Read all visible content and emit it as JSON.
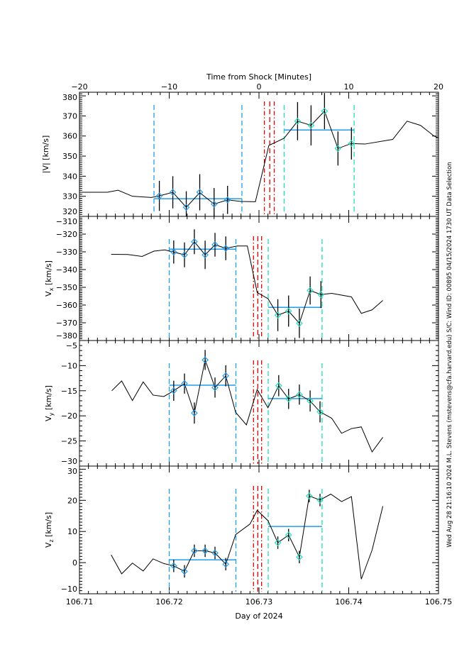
{
  "footer_text": "Wed Aug 28 21:16:10 2024  M.L. Stevens (mstevens@cfa.harvard.edu)  S/C: Wind ID: 00895 04/15/2024  1730 UT Data Selection",
  "colors": {
    "line": "#000000",
    "pre_marker": "#1e9ef0",
    "post_marker": "#1fe0c0",
    "average": "#1e9ef0",
    "boundary_pre": "#1e9ef0",
    "boundary_post": "#1fe0b8",
    "shock": "#e00000"
  },
  "chart_data": [
    {
      "type": "line",
      "panel": "speed",
      "top_xlabel": "Time from Shock [Minutes]",
      "xlim": [
        -20,
        20
      ],
      "xticks": [
        "-20",
        "-10",
        "0",
        "10",
        "20"
      ],
      "ylabel": "|V| [km/s]",
      "ylim": [
        320,
        381.8
      ],
      "yticks": [
        "320",
        "330",
        "340",
        "350",
        "360",
        "370",
        "380"
      ],
      "x": [
        -20,
        -16.9,
        -15.7,
        -14.1,
        -12,
        -11.1,
        -9.6,
        -8.1,
        -6.6,
        -5,
        -3.5,
        -2,
        -0.4,
        1.1,
        2.8,
        4.3,
        5.8,
        7.3,
        8.8,
        10.3,
        11.8,
        14.9,
        16.5,
        18,
        19.5,
        20
      ],
      "y": [
        332,
        332,
        333,
        330,
        329.4,
        330.2,
        332,
        324.5,
        331.8,
        326.1,
        328.2,
        327.4,
        327.3,
        355.3,
        358.9,
        367.4,
        365.3,
        372.4,
        353.8,
        356.3,
        356,
        358.3,
        367.4,
        365.3,
        360,
        359
      ],
      "points": [
        {
          "x": -11.1,
          "y": 330.2,
          "err": 7.5,
          "group": "pre"
        },
        {
          "x": -9.6,
          "y": 332,
          "err": 8,
          "group": "pre"
        },
        {
          "x": -8.1,
          "y": 324.5,
          "err": 8,
          "group": "pre"
        },
        {
          "x": -6.6,
          "y": 332,
          "err": 9,
          "group": "pre"
        },
        {
          "x": -5,
          "y": 326.1,
          "err": 8,
          "group": "pre"
        },
        {
          "x": -3.5,
          "y": 328.2,
          "err": 7,
          "group": "pre"
        },
        {
          "x": 4.3,
          "y": 367.4,
          "err": 9.5,
          "group": "post"
        },
        {
          "x": 5.8,
          "y": 365.3,
          "err": 10,
          "group": "post"
        },
        {
          "x": 7.3,
          "y": 372.4,
          "err": 9,
          "group": "post"
        },
        {
          "x": 8.8,
          "y": 353.8,
          "err": 8.5,
          "group": "post"
        },
        {
          "x": 10.3,
          "y": 356.3,
          "err": 8,
          "group": "post"
        }
      ],
      "averages": [
        {
          "x0": -11.7,
          "x1": -1.9,
          "y": 328.8,
          "group": "pre"
        },
        {
          "x0": 2.8,
          "x1": 10.6,
          "y": 363,
          "group": "post"
        }
      ],
      "vlines": [
        {
          "x": -11.7,
          "kind": "boundary_pre",
          "style": "dash"
        },
        {
          "x": -1.9,
          "kind": "boundary_pre",
          "style": "dash"
        },
        {
          "x": 0.6,
          "kind": "shock",
          "style": "dashdot"
        },
        {
          "x": 1.2,
          "kind": "shock",
          "style": "dash"
        },
        {
          "x": 1.7,
          "kind": "shock",
          "style": "dashdot"
        },
        {
          "x": 2.8,
          "kind": "boundary_post",
          "style": "dash"
        },
        {
          "x": 10.6,
          "kind": "boundary_post",
          "style": "dash"
        }
      ]
    },
    {
      "type": "line",
      "panel": "vx",
      "xlim": [
        106.71,
        106.75
      ],
      "ylabel": "Vx [km/s]",
      "ylabel_main": "V",
      "ylabel_sub": "x",
      "ylabel_unit": " [km/s]",
      "ylim": [
        -380,
        -310
      ],
      "yticks": [
        "-310",
        "-320",
        "-330",
        "-340",
        "-350",
        "-360",
        "-370",
        "-380"
      ],
      "x": [
        106.71353,
        106.71538,
        106.71698,
        106.7183,
        106.7195,
        106.7205,
        106.7217,
        106.7228,
        106.724,
        106.7251,
        106.7263,
        106.7276,
        106.7287,
        106.7298,
        106.731,
        106.7321,
        106.7333,
        106.7345,
        106.7357,
        106.7369,
        106.7381,
        106.7403,
        106.7414,
        106.7426,
        106.7438
      ],
      "y": [
        -331.4,
        -331.5,
        -332.6,
        -329.6,
        -328.9,
        -330.1,
        -331.7,
        -324.3,
        -331.7,
        -326,
        -328,
        -326.7,
        -326.7,
        -352.9,
        -356.4,
        -365.7,
        -363.4,
        -370.3,
        -351.8,
        -354.1,
        -353.4,
        -355.4,
        -364.7,
        -362.7,
        -357.4
      ],
      "points": [
        {
          "x": 106.7205,
          "y": -330.1,
          "err": 6.5,
          "group": "pre"
        },
        {
          "x": 106.7217,
          "y": -331.7,
          "err": 7,
          "group": "pre"
        },
        {
          "x": 106.7228,
          "y": -324.3,
          "err": 7,
          "group": "pre"
        },
        {
          "x": 106.724,
          "y": -331.7,
          "err": 8,
          "group": "pre"
        },
        {
          "x": 106.7251,
          "y": -326,
          "err": 6.7,
          "group": "pre"
        },
        {
          "x": 106.7263,
          "y": -328,
          "err": 6.7,
          "group": "pre"
        },
        {
          "x": 106.7321,
          "y": -365.7,
          "err": 9,
          "group": "post"
        },
        {
          "x": 106.7333,
          "y": -363.4,
          "err": 8.8,
          "group": "post"
        },
        {
          "x": 106.7345,
          "y": -370.3,
          "err": 8.3,
          "group": "post"
        },
        {
          "x": 106.7357,
          "y": -351.8,
          "err": 7.9,
          "group": "post"
        },
        {
          "x": 106.7369,
          "y": -354.1,
          "err": 7.6,
          "group": "post"
        }
      ],
      "averages": [
        {
          "x0": 106.72,
          "x1": 106.72743,
          "y": -328.5,
          "group": "pre"
        },
        {
          "x0": 106.73103,
          "x1": 106.73703,
          "y": -361.3,
          "group": "post"
        }
      ],
      "vlines": [
        {
          "x": 106.72,
          "kind": "boundary_pre",
          "style": "dash"
        },
        {
          "x": 106.72743,
          "kind": "boundary_pre",
          "style": "dash"
        },
        {
          "x": 106.72939,
          "kind": "shock",
          "style": "dashdot"
        },
        {
          "x": 106.72987,
          "kind": "shock",
          "style": "dash"
        },
        {
          "x": 106.73029,
          "kind": "shock",
          "style": "dashdot"
        },
        {
          "x": 106.73103,
          "kind": "boundary_post",
          "style": "dash"
        },
        {
          "x": 106.73703,
          "kind": "boundary_post",
          "style": "dash"
        }
      ]
    },
    {
      "type": "line",
      "panel": "vy",
      "xlim": [
        106.71,
        106.75
      ],
      "ylabel": "Vy [km/s]",
      "ylabel_main": "V",
      "ylabel_sub": "y",
      "ylabel_unit": " [km/s]",
      "ylim": [
        -30,
        -5
      ],
      "yticks": [
        "-5",
        "-10",
        "-15",
        "-20",
        "-25",
        "-30"
      ],
      "x": [
        106.7136,
        106.7147,
        106.7159,
        106.7171,
        106.7182,
        106.7194,
        106.7205,
        106.7217,
        106.7228,
        106.724,
        106.7251,
        106.7263,
        106.7274,
        106.7286,
        106.7298,
        106.731,
        106.7322,
        106.7333,
        106.7345,
        106.7357,
        106.7368,
        106.7381,
        106.7392,
        106.7403,
        106.7414,
        106.7426,
        106.7438
      ],
      "y": [
        -15,
        -13.05,
        -16.95,
        -13.24,
        -15.87,
        -16.15,
        -15,
        -13.57,
        -19.44,
        -8.87,
        -14.37,
        -12.02,
        -19.3,
        -21.8,
        -14.74,
        -18.4,
        -13.99,
        -16.62,
        -15.77,
        -17.04,
        -19.2,
        -20.47,
        -23.47,
        -22.54,
        -22.2,
        -27.18,
        -24.27
      ],
      "points": [
        {
          "x": 106.7205,
          "y": -15,
          "err": 2,
          "group": "pre"
        },
        {
          "x": 106.7217,
          "y": -13.57,
          "err": 2,
          "group": "pre"
        },
        {
          "x": 106.7228,
          "y": -19.44,
          "err": 2.1,
          "group": "pre"
        },
        {
          "x": 106.724,
          "y": -8.87,
          "err": 2,
          "group": "pre"
        },
        {
          "x": 106.7251,
          "y": -14.37,
          "err": 2,
          "group": "pre"
        },
        {
          "x": 106.7263,
          "y": -12.02,
          "err": 2.1,
          "group": "pre"
        },
        {
          "x": 106.7322,
          "y": -13.99,
          "err": 2.1,
          "group": "post"
        },
        {
          "x": 106.7333,
          "y": -16.62,
          "err": 2,
          "group": "post"
        },
        {
          "x": 106.7345,
          "y": -15.77,
          "err": 2,
          "group": "post"
        },
        {
          "x": 106.7357,
          "y": -17.04,
          "err": 2.1,
          "group": "post"
        },
        {
          "x": 106.7368,
          "y": -19.2,
          "err": 2.1,
          "group": "post"
        }
      ],
      "averages": [
        {
          "x0": 106.72,
          "x1": 106.72743,
          "y": -13.9,
          "group": "pre"
        },
        {
          "x0": 106.73103,
          "x1": 106.73703,
          "y": -16.57,
          "group": "post"
        }
      ],
      "vlines": [
        {
          "x": 106.72,
          "kind": "boundary_pre",
          "style": "dash"
        },
        {
          "x": 106.72743,
          "kind": "boundary_pre",
          "style": "dash"
        },
        {
          "x": 106.72939,
          "kind": "shock",
          "style": "dashdot"
        },
        {
          "x": 106.72987,
          "kind": "shock",
          "style": "dash"
        },
        {
          "x": 106.73029,
          "kind": "shock",
          "style": "dashdot"
        },
        {
          "x": 106.73103,
          "kind": "boundary_post",
          "style": "dash"
        },
        {
          "x": 106.73703,
          "kind": "boundary_post",
          "style": "dash"
        }
      ]
    },
    {
      "type": "line",
      "panel": "vz",
      "xlim": [
        106.71,
        106.75
      ],
      "xticks": [
        "106.71",
        "106.72",
        "106.73",
        "106.74",
        "106.75"
      ],
      "xlabel": "Day of 2024",
      "ylabel": "Vz [km/s]",
      "ylabel_main": "V",
      "ylabel_sub": "z",
      "ylabel_unit": " [km/s]",
      "ylim": [
        -10,
        31
      ],
      "yticks": [
        "30",
        "20",
        "10",
        "0",
        "-10"
      ],
      "x": [
        106.71353,
        106.7147,
        106.7159,
        106.7171,
        106.7182,
        106.7194,
        106.7205,
        106.7217,
        106.7228,
        106.724,
        106.7251,
        106.7263,
        106.7274,
        106.729,
        106.7298,
        106.731,
        106.7321,
        106.7333,
        106.7345,
        106.7356,
        106.7368,
        106.738,
        106.7392,
        106.7403,
        106.7414,
        106.7426,
        106.7438
      ],
      "y": [
        2.5,
        -3.6,
        -0.15,
        -2.7,
        1.2,
        -0.3,
        -1.04,
        -2.8,
        3.8,
        3.8,
        3.1,
        -0.5,
        9,
        12.4,
        16.8,
        13.5,
        6.4,
        8.85,
        1.8,
        21.4,
        20.1,
        22,
        19.6,
        21.2,
        -5.3,
        4,
        18.1
      ],
      "points": [
        {
          "x": 106.7205,
          "y": -1.04,
          "err": 2,
          "group": "pre"
        },
        {
          "x": 106.7217,
          "y": -2.8,
          "err": 2,
          "group": "pre"
        },
        {
          "x": 106.7228,
          "y": 3.8,
          "err": 2,
          "group": "pre"
        },
        {
          "x": 106.724,
          "y": 3.8,
          "err": 2,
          "group": "pre"
        },
        {
          "x": 106.7251,
          "y": 3.1,
          "err": 2,
          "group": "pre"
        },
        {
          "x": 106.7263,
          "y": -0.5,
          "err": 2,
          "group": "pre"
        },
        {
          "x": 106.7321,
          "y": 6.4,
          "err": 2,
          "group": "post"
        },
        {
          "x": 106.7333,
          "y": 8.85,
          "err": 2,
          "group": "post"
        },
        {
          "x": 106.7345,
          "y": 1.8,
          "err": 2,
          "group": "post"
        },
        {
          "x": 106.7356,
          "y": 21.4,
          "err": 2,
          "group": "post"
        },
        {
          "x": 106.7368,
          "y": 20.1,
          "err": 2,
          "group": "post"
        }
      ],
      "averages": [
        {
          "x0": 106.72,
          "x1": 106.72743,
          "y": 0.9,
          "group": "pre"
        },
        {
          "x0": 106.73103,
          "x1": 106.73703,
          "y": 11.6,
          "group": "post"
        }
      ],
      "vlines": [
        {
          "x": 106.72,
          "kind": "boundary_pre",
          "style": "dash"
        },
        {
          "x": 106.72743,
          "kind": "boundary_pre",
          "style": "dash"
        },
        {
          "x": 106.72939,
          "kind": "shock",
          "style": "dashdot"
        },
        {
          "x": 106.72987,
          "kind": "shock",
          "style": "dash"
        },
        {
          "x": 106.73029,
          "kind": "shock",
          "style": "dashdot"
        },
        {
          "x": 106.73103,
          "kind": "boundary_post",
          "style": "dash"
        },
        {
          "x": 106.73703,
          "kind": "boundary_post",
          "style": "dash"
        }
      ]
    }
  ]
}
